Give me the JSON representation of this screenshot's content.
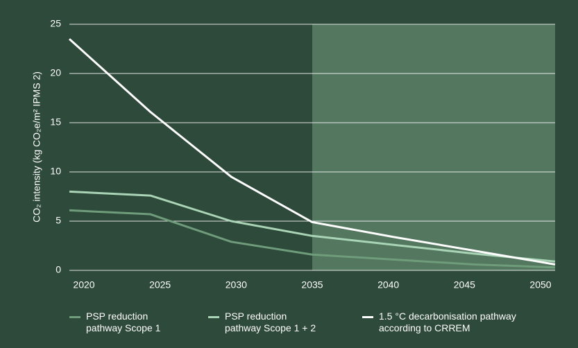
{
  "chart_data": {
    "type": "line",
    "x": [
      2020,
      2025,
      2030,
      2035,
      2040,
      2045,
      2050
    ],
    "series": [
      {
        "name": "PSP reduction\npathway Scope 1",
        "color": "#6f9c7a",
        "values": [
          6.1,
          5.7,
          2.9,
          1.6,
          1.1,
          0.6,
          0.3
        ]
      },
      {
        "name": "PSP reduction\npathway Scope 1 + 2",
        "color": "#a9d4b5",
        "values": [
          8.0,
          7.6,
          5.0,
          3.5,
          2.6,
          1.7,
          0.9
        ]
      },
      {
        "name": "1.5 °C decarbonisation pathway\naccording to CRREM",
        "color": "#ffffff",
        "values": [
          23.5,
          16.1,
          9.5,
          4.9,
          3.4,
          2.0,
          0.6
        ]
      }
    ],
    "y_label": "CO₂ intensity (kg CO₂e/m² IPMS 2)",
    "xlim": [
      2020,
      2050
    ],
    "xticks": [
      2020,
      2025,
      2030,
      2035,
      2040,
      2045,
      2050
    ],
    "ylim": [
      0,
      25
    ],
    "yticks": [
      0,
      5,
      10,
      15,
      20,
      25
    ],
    "highlight_x": [
      2035,
      2050
    ],
    "highlight_color": "#53775f",
    "grid": true
  }
}
